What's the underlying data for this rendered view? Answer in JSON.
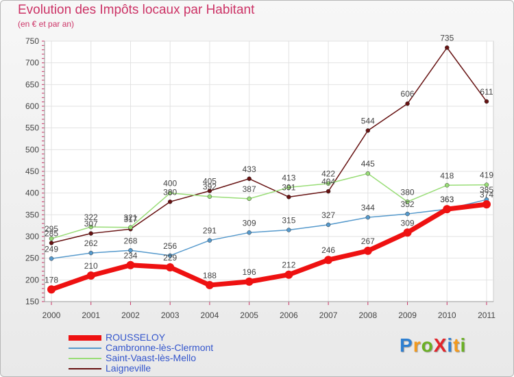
{
  "title": "Evolution des Impôts locaux par Habitant",
  "subtitle": "(en € et par an)",
  "logo": {
    "text": "ProXiti",
    "letters": [
      "P",
      "r",
      "o",
      "X",
      "i",
      "t",
      "i"
    ],
    "colors": [
      "#2e7fd1",
      "#f39a1e",
      "#6ab023",
      "#e2242a",
      "#2e7fd1",
      "#f39a1e",
      "#6ab023"
    ]
  },
  "chart_data": {
    "type": "line",
    "title": "Evolution des Impôts locaux par Habitant",
    "subtitle": "(en € et par an)",
    "xlabel": "",
    "ylabel": "",
    "categories": [
      "2000",
      "2001",
      "2002",
      "2003",
      "2004",
      "2005",
      "2006",
      "2007",
      "2008",
      "2009",
      "2010",
      "2011"
    ],
    "ylim": [
      150,
      750
    ],
    "yticks": [
      150,
      200,
      250,
      300,
      350,
      400,
      450,
      500,
      550,
      600,
      650,
      700,
      750
    ],
    "grid": true,
    "legend_position": "bottom-left",
    "series": [
      {
        "name": "ROUSSELOY",
        "color": "#ee1111",
        "values": [
          178,
          210,
          234,
          229,
          188,
          196,
          212,
          246,
          267,
          309,
          363,
          374
        ]
      },
      {
        "name": "Cambronne-lès-Clermont",
        "color": "#5599cc",
        "values": [
          249,
          262,
          268,
          256,
          291,
          309,
          315,
          327,
          344,
          352,
          363,
          385
        ]
      },
      {
        "name": "Saint-Vaast-lès-Mello",
        "color": "#99dd77",
        "values": [
          295,
          322,
          321,
          400,
          392,
          387,
          413,
          422,
          445,
          380,
          418,
          419
        ]
      },
      {
        "name": "Laigneville",
        "color": "#661111",
        "values": [
          285,
          307,
          317,
          380,
          405,
          433,
          391,
          404,
          544,
          606,
          735,
          611
        ]
      }
    ]
  }
}
